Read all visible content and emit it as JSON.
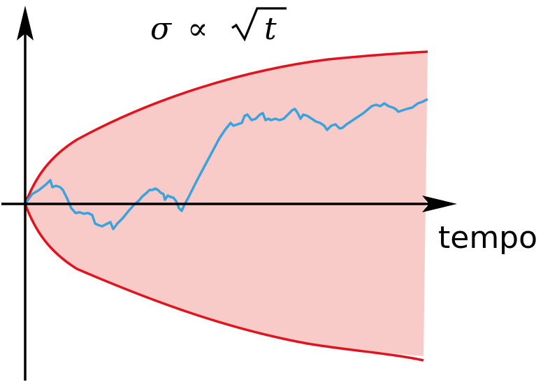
{
  "title": {
    "sigma": "σ",
    "proportional": "∝",
    "variable": "t"
  },
  "x_axis_label": "tempo",
  "colors": {
    "envelope_fill": "#f8cbc9",
    "envelope_line": "#e0141e",
    "path_line": "#3aa2dc",
    "axis": "#000000"
  }
}
